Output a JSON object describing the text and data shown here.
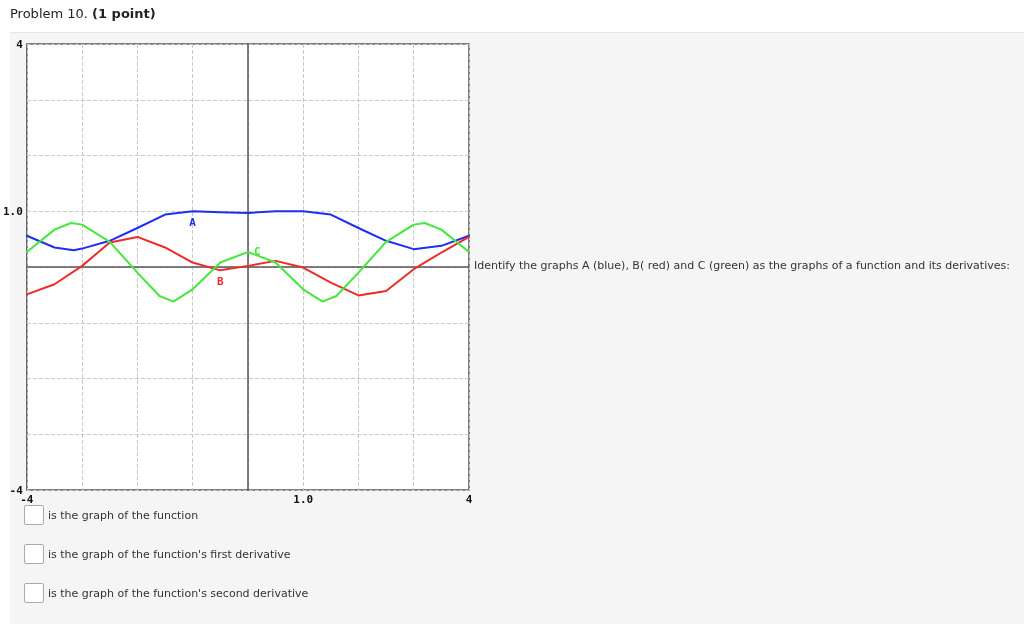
{
  "chart_data": {
    "type": "line",
    "title": "Problem 10. (1 point)",
    "xlim": [
      -4,
      4
    ],
    "ylim": [
      -4,
      4
    ],
    "xticks": [
      {
        "value": -4,
        "label": "-4"
      },
      {
        "value": -3,
        "label": null
      },
      {
        "value": -2,
        "label": null
      },
      {
        "value": -1,
        "label": null
      },
      {
        "value": 0,
        "label": null
      },
      {
        "value": 1,
        "label": "1.0"
      },
      {
        "value": 2,
        "label": null
      },
      {
        "value": 3,
        "label": null
      },
      {
        "value": 4,
        "label": "4"
      }
    ],
    "yticks": [
      {
        "value": -4,
        "label": "-4"
      },
      {
        "value": -3,
        "label": null
      },
      {
        "value": -2,
        "label": null
      },
      {
        "value": -1,
        "label": null
      },
      {
        "value": 0,
        "label": null
      },
      {
        "value": 1,
        "label": "1.0"
      },
      {
        "value": 2,
        "label": null
      },
      {
        "value": 3,
        "label": null
      },
      {
        "value": 4,
        "label": "4"
      }
    ],
    "grid": true,
    "marker": "none",
    "line_style": "solid",
    "series": [
      {
        "name": "A",
        "color": "#1f2ef0",
        "x": [
          -4,
          -3.5,
          -3.15,
          -3,
          -2.5,
          -2,
          -1.5,
          -1,
          -0.5,
          0,
          0.5,
          1,
          1.5,
          2,
          2.5,
          3,
          3.5,
          4
        ],
        "values": [
          0.56,
          0.35,
          0.3,
          0.33,
          0.47,
          0.7,
          0.94,
          1.0,
          0.98,
          0.97,
          1.0,
          1.0,
          0.94,
          0.7,
          0.47,
          0.32,
          0.38,
          0.56
        ]
      },
      {
        "name": "B",
        "color": "#f02a2a",
        "x": [
          -4,
          -3.5,
          -3,
          -2.5,
          -2,
          -1.5,
          -1,
          -0.5,
          0,
          0.5,
          1,
          1.5,
          2,
          2.5,
          3,
          3.5,
          4
        ],
        "values": [
          -0.49,
          -0.31,
          0.02,
          0.44,
          0.54,
          0.35,
          0.08,
          -0.06,
          0.02,
          0.11,
          -0.01,
          -0.28,
          -0.51,
          -0.43,
          -0.04,
          0.26,
          0.54
        ]
      },
      {
        "name": "C",
        "color": "#45e83a",
        "x": [
          -4,
          -3.5,
          -3.2,
          -3,
          -2.5,
          -2,
          -1.6,
          -1.35,
          -1,
          -0.5,
          0,
          0.5,
          1,
          1.35,
          1.6,
          2,
          2.5,
          3,
          3.2,
          3.5,
          4
        ],
        "values": [
          0.27,
          0.67,
          0.79,
          0.76,
          0.45,
          -0.1,
          -0.52,
          -0.62,
          -0.4,
          0.08,
          0.27,
          0.08,
          -0.4,
          -0.62,
          -0.52,
          -0.1,
          0.45,
          0.76,
          0.79,
          0.67,
          0.27
        ]
      }
    ],
    "annotations": [
      "Identify the graphs A (blue), B( red) and C (green) as the graphs of a function and its derivatives:",
      "is the graph of the function",
      "is the graph of the function's first derivative",
      "is the graph of the function's second derivative"
    ]
  }
}
